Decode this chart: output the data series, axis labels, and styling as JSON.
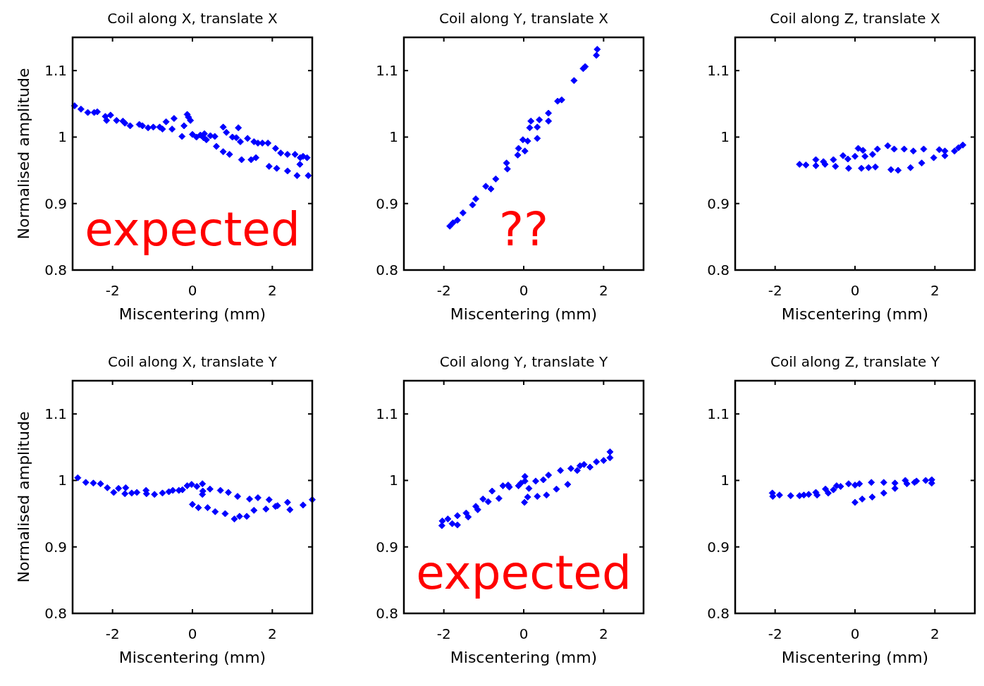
{
  "chart_data": [
    {
      "type": "scatter",
      "title": "Coil along X, translate X",
      "xlabel": "Miscentering (mm)",
      "ylabel": "Normalised amplitude",
      "xlim": [
        -3,
        3
      ],
      "ylim": [
        0.8,
        1.15
      ],
      "xticks": [
        -2,
        0,
        2
      ],
      "yticks": [
        0.8,
        0.9,
        1,
        1.1
      ],
      "marker": "diamond",
      "annotations": [
        "expected"
      ],
      "series": [
        {
          "color": "#0000ff",
          "x": [
            -2.95,
            -2.79,
            -2.62,
            -2.46,
            -2.38,
            -2.18,
            -2.05,
            -2.15,
            -1.9,
            -1.74,
            -1.69,
            -1.56,
            -1.33,
            -1.25,
            -1.11,
            -0.98,
            -0.82,
            -0.75,
            -0.66,
            -0.51,
            -0.46,
            -0.21,
            -0.13,
            -0.1,
            -0.05,
            0.1,
            0.2,
            0.28,
            0.35,
            0.45,
            0.3,
            0.56,
            0.77,
            0.85,
            1.0,
            1.1,
            1.15,
            1.2,
            1.38,
            1.54,
            1.64,
            1.75,
            1.89,
            2.08,
            2.21,
            2.38,
            2.57,
            2.7,
            2.77,
            2.87,
            2.69,
            -0.26,
            0,
            0.6,
            0.77,
            0.93,
            1.23,
            1.47,
            1.59,
            1.92,
            2.11,
            2.38,
            2.62,
            2.9
          ],
          "values": [
            1.047,
            1.042,
            1.037,
            1.037,
            1.038,
            1.031,
            1.033,
            1.025,
            1.025,
            1.024,
            1.021,
            1.017,
            1.019,
            1.017,
            1.014,
            1.015,
            1.015,
            1.012,
            1.023,
            1.012,
            1.028,
            1.017,
            1.034,
            1.03,
            1.025,
            1.0,
            1.003,
            0.999,
            0.996,
            1.002,
            1.005,
            1.001,
            1.015,
            1.007,
            1.0,
            0.999,
            1.014,
            0.993,
            0.998,
            0.993,
            0.991,
            0.991,
            0.991,
            0.983,
            0.976,
            0.974,
            0.974,
            0.969,
            0.971,
            0.969,
            0.959,
            1.001,
            1.004,
            0.986,
            0.978,
            0.974,
            0.966,
            0.966,
            0.969,
            0.956,
            0.953,
            0.949,
            0.942,
            0.942
          ]
        }
      ]
    },
    {
      "type": "scatter",
      "title": "Coil along Y, translate X",
      "xlabel": "Miscentering (mm)",
      "xlim": [
        -3,
        3
      ],
      "ylim": [
        0.8,
        1.15
      ],
      "xticks": [
        -2,
        0,
        2
      ],
      "yticks": [
        0.8,
        0.9,
        1,
        1.1
      ],
      "marker": "diamond",
      "annotations": [
        "??"
      ],
      "series": [
        {
          "color": "#0000ff",
          "x": [
            -1.85,
            -1.77,
            -1.66,
            -1.52,
            -1.28,
            -1.2,
            -0.95,
            -0.82,
            -0.7,
            -0.43,
            -0.41,
            -0.15,
            -0.13,
            0.03,
            -0.02,
            0.1,
            0.34,
            0.15,
            0.18,
            0.34,
            0.39,
            0.62,
            0.62,
            0.85,
            0.95,
            1.26,
            1.49,
            1.54,
            1.82,
            1.84
          ],
          "values": [
            0.866,
            0.871,
            0.875,
            0.886,
            0.898,
            0.907,
            0.926,
            0.922,
            0.937,
            0.961,
            0.952,
            0.973,
            0.983,
            0.979,
            0.996,
            0.994,
            0.998,
            1.014,
            1.024,
            1.015,
            1.026,
            1.036,
            1.024,
            1.054,
            1.056,
            1.085,
            1.103,
            1.106,
            1.123,
            1.132
          ]
        }
      ]
    },
    {
      "type": "scatter",
      "title": "Coil along Z, translate X",
      "xlabel": "Miscentering (mm)",
      "xlim": [
        -3,
        3
      ],
      "ylim": [
        0.8,
        1.15
      ],
      "xticks": [
        -2,
        0,
        2
      ],
      "yticks": [
        0.8,
        0.9,
        1,
        1.1
      ],
      "marker": "diamond",
      "series": [
        {
          "color": "#0000ff",
          "x": [
            -1.39,
            -1.23,
            -0.98,
            -0.98,
            -0.79,
            -0.75,
            -0.54,
            -0.49,
            -0.3,
            -0.18,
            -0.16,
            0,
            0.08,
            0.2,
            0.25,
            0.16,
            0.34,
            0.44,
            0.51,
            0.56,
            0.82,
            0.9,
            0.98,
            1.08,
            1.23,
            1.39,
            1.46,
            1.67,
            1.72,
            1.97,
            2.11,
            2.25,
            2.25,
            2.49,
            2.59,
            2.7
          ],
          "values": [
            0.959,
            0.958,
            0.966,
            0.957,
            0.963,
            0.959,
            0.966,
            0.956,
            0.972,
            0.967,
            0.953,
            0.971,
            0.983,
            0.98,
            0.971,
            0.953,
            0.954,
            0.974,
            0.955,
            0.982,
            0.987,
            0.951,
            0.982,
            0.95,
            0.982,
            0.954,
            0.979,
            0.961,
            0.982,
            0.969,
            0.981,
            0.979,
            0.972,
            0.979,
            0.984,
            0.988
          ]
        }
      ]
    },
    {
      "type": "scatter",
      "title": "Coil along X, translate Y",
      "xlabel": "Miscentering (mm)",
      "ylabel": "Normalised amplitude",
      "xlim": [
        -3,
        3
      ],
      "ylim": [
        0.8,
        1.15
      ],
      "xticks": [
        -2,
        0,
        2
      ],
      "yticks": [
        0.8,
        0.9,
        1,
        1.1
      ],
      "marker": "diamond",
      "series": [
        {
          "color": "#0000ff",
          "x": [
            -2.87,
            -2.67,
            -2.48,
            -2.3,
            -2.13,
            -1.97,
            -1.85,
            -1.69,
            -1.67,
            -1.52,
            -1.39,
            -1.16,
            -1.15,
            -0.95,
            -0.75,
            -0.59,
            -0.49,
            -0.34,
            -0.25,
            -0.13,
            -0.02,
            0.11,
            0.25,
            0.26,
            0.25,
            0.44,
            0.7,
            0.9,
            1.13,
            1.43,
            1.64,
            1.92,
            2.38,
            2.77,
            3.0,
            0,
            0.15,
            0.38,
            0.57,
            0.82,
            1.05,
            1.18,
            1.36,
            1.54,
            1.84,
            2.08,
            2.13,
            2.44
          ],
          "values": [
            1.004,
            0.997,
            0.996,
            0.995,
            0.989,
            0.982,
            0.988,
            0.98,
            0.989,
            0.981,
            0.982,
            0.985,
            0.98,
            0.979,
            0.981,
            0.983,
            0.985,
            0.985,
            0.986,
            0.992,
            0.994,
            0.991,
            0.995,
            0.984,
            0.979,
            0.987,
            0.985,
            0.982,
            0.976,
            0.972,
            0.974,
            0.971,
            0.967,
            0.963,
            0.971,
            0.964,
            0.959,
            0.959,
            0.953,
            0.95,
            0.942,
            0.946,
            0.946,
            0.955,
            0.957,
            0.961,
            0.962,
            0.956
          ]
        }
      ]
    },
    {
      "type": "scatter",
      "title": "Coil along Y, translate Y",
      "xlabel": "Miscentering (mm)",
      "xlim": [
        -3,
        3
      ],
      "ylim": [
        0.8,
        1.15
      ],
      "xticks": [
        -2,
        0,
        2
      ],
      "yticks": [
        0.8,
        0.9,
        1,
        1.1
      ],
      "marker": "diamond",
      "annotations": [
        "expected"
      ],
      "series": [
        {
          "color": "#0000ff",
          "x": [
            -2.05,
            -2.04,
            -1.9,
            -1.79,
            -1.66,
            -1.66,
            -1.44,
            -1.39,
            -1.2,
            -1.15,
            -1.02,
            -0.89,
            -0.79,
            -0.62,
            -0.52,
            -0.39,
            -0.36,
            -0.13,
            -0.07,
            0.03,
            0.03,
            0.13,
            0.1,
            0.02,
            0.3,
            0.34,
            0.49,
            0.57,
            0.62,
            0.82,
            0.92,
            1.1,
            1.18,
            1.34,
            1.41,
            1.51,
            1.66,
            1.82,
            2.0,
            2.16,
            2.16
          ],
          "values": [
            0.932,
            0.939,
            0.942,
            0.935,
            0.933,
            0.947,
            0.951,
            0.945,
            0.961,
            0.956,
            0.972,
            0.968,
            0.984,
            0.973,
            0.992,
            0.993,
            0.99,
            0.992,
            0.996,
            0.999,
            1.006,
            0.988,
            0.975,
            0.967,
            0.999,
            0.976,
            1.001,
            0.978,
            1.008,
            0.987,
            1.015,
            0.994,
            1.018,
            1.015,
            1.022,
            1.024,
            1.02,
            1.028,
            1.03,
            1.043,
            1.034
          ]
        }
      ]
    },
    {
      "type": "scatter",
      "title": "Coil along Z, translate Y",
      "xlabel": "Miscentering (mm)",
      "xlim": [
        -3,
        3
      ],
      "ylim": [
        0.8,
        1.15
      ],
      "xticks": [
        -2,
        0,
        2
      ],
      "yticks": [
        0.8,
        0.9,
        1,
        1.1
      ],
      "marker": "diamond",
      "series": [
        {
          "color": "#0000ff",
          "x": [
            -2.07,
            -2.06,
            -1.89,
            -1.61,
            -1.39,
            -1.28,
            -1.16,
            -0.98,
            -0.95,
            -0.74,
            -0.67,
            -0.54,
            -0.46,
            -0.36,
            -0.16,
            0,
            0.11,
            0,
            0.18,
            0.41,
            0.43,
            0.72,
            0.72,
            1.0,
            1.0,
            1.26,
            1.3,
            1.49,
            1.54,
            1.77,
            1.92,
            1.92
          ],
          "values": [
            0.981,
            0.976,
            0.978,
            0.977,
            0.977,
            0.978,
            0.979,
            0.982,
            0.978,
            0.987,
            0.981,
            0.986,
            0.992,
            0.991,
            0.995,
            0.993,
            0.995,
            0.967,
            0.972,
            0.997,
            0.975,
            0.997,
            0.981,
            0.996,
            0.988,
            1.0,
            0.995,
            0.997,
            0.999,
            1.0,
            1.001,
            0.996
          ]
        }
      ]
    }
  ]
}
